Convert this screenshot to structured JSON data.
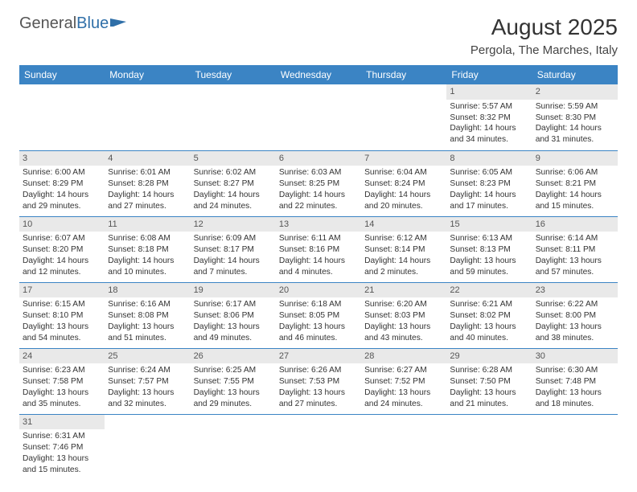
{
  "logo": {
    "text1": "General",
    "text2": "Blue"
  },
  "title": "August 2025",
  "location": "Pergola, The Marches, Italy",
  "colors": {
    "header_bg": "#3b84c4",
    "header_text": "#ffffff",
    "day_bg": "#e9e9e9",
    "border": "#3b84c4",
    "body_text": "#333333"
  },
  "weekdays": [
    "Sunday",
    "Monday",
    "Tuesday",
    "Wednesday",
    "Thursday",
    "Friday",
    "Saturday"
  ],
  "weeks": [
    [
      {
        "day": "",
        "sunrise": "",
        "sunset": "",
        "daylight": ""
      },
      {
        "day": "",
        "sunrise": "",
        "sunset": "",
        "daylight": ""
      },
      {
        "day": "",
        "sunrise": "",
        "sunset": "",
        "daylight": ""
      },
      {
        "day": "",
        "sunrise": "",
        "sunset": "",
        "daylight": ""
      },
      {
        "day": "",
        "sunrise": "",
        "sunset": "",
        "daylight": ""
      },
      {
        "day": "1",
        "sunrise": "Sunrise: 5:57 AM",
        "sunset": "Sunset: 8:32 PM",
        "daylight": "Daylight: 14 hours and 34 minutes."
      },
      {
        "day": "2",
        "sunrise": "Sunrise: 5:59 AM",
        "sunset": "Sunset: 8:30 PM",
        "daylight": "Daylight: 14 hours and 31 minutes."
      }
    ],
    [
      {
        "day": "3",
        "sunrise": "Sunrise: 6:00 AM",
        "sunset": "Sunset: 8:29 PM",
        "daylight": "Daylight: 14 hours and 29 minutes."
      },
      {
        "day": "4",
        "sunrise": "Sunrise: 6:01 AM",
        "sunset": "Sunset: 8:28 PM",
        "daylight": "Daylight: 14 hours and 27 minutes."
      },
      {
        "day": "5",
        "sunrise": "Sunrise: 6:02 AM",
        "sunset": "Sunset: 8:27 PM",
        "daylight": "Daylight: 14 hours and 24 minutes."
      },
      {
        "day": "6",
        "sunrise": "Sunrise: 6:03 AM",
        "sunset": "Sunset: 8:25 PM",
        "daylight": "Daylight: 14 hours and 22 minutes."
      },
      {
        "day": "7",
        "sunrise": "Sunrise: 6:04 AM",
        "sunset": "Sunset: 8:24 PM",
        "daylight": "Daylight: 14 hours and 20 minutes."
      },
      {
        "day": "8",
        "sunrise": "Sunrise: 6:05 AM",
        "sunset": "Sunset: 8:23 PM",
        "daylight": "Daylight: 14 hours and 17 minutes."
      },
      {
        "day": "9",
        "sunrise": "Sunrise: 6:06 AM",
        "sunset": "Sunset: 8:21 PM",
        "daylight": "Daylight: 14 hours and 15 minutes."
      }
    ],
    [
      {
        "day": "10",
        "sunrise": "Sunrise: 6:07 AM",
        "sunset": "Sunset: 8:20 PM",
        "daylight": "Daylight: 14 hours and 12 minutes."
      },
      {
        "day": "11",
        "sunrise": "Sunrise: 6:08 AM",
        "sunset": "Sunset: 8:18 PM",
        "daylight": "Daylight: 14 hours and 10 minutes."
      },
      {
        "day": "12",
        "sunrise": "Sunrise: 6:09 AM",
        "sunset": "Sunset: 8:17 PM",
        "daylight": "Daylight: 14 hours and 7 minutes."
      },
      {
        "day": "13",
        "sunrise": "Sunrise: 6:11 AM",
        "sunset": "Sunset: 8:16 PM",
        "daylight": "Daylight: 14 hours and 4 minutes."
      },
      {
        "day": "14",
        "sunrise": "Sunrise: 6:12 AM",
        "sunset": "Sunset: 8:14 PM",
        "daylight": "Daylight: 14 hours and 2 minutes."
      },
      {
        "day": "15",
        "sunrise": "Sunrise: 6:13 AM",
        "sunset": "Sunset: 8:13 PM",
        "daylight": "Daylight: 13 hours and 59 minutes."
      },
      {
        "day": "16",
        "sunrise": "Sunrise: 6:14 AM",
        "sunset": "Sunset: 8:11 PM",
        "daylight": "Daylight: 13 hours and 57 minutes."
      }
    ],
    [
      {
        "day": "17",
        "sunrise": "Sunrise: 6:15 AM",
        "sunset": "Sunset: 8:10 PM",
        "daylight": "Daylight: 13 hours and 54 minutes."
      },
      {
        "day": "18",
        "sunrise": "Sunrise: 6:16 AM",
        "sunset": "Sunset: 8:08 PM",
        "daylight": "Daylight: 13 hours and 51 minutes."
      },
      {
        "day": "19",
        "sunrise": "Sunrise: 6:17 AM",
        "sunset": "Sunset: 8:06 PM",
        "daylight": "Daylight: 13 hours and 49 minutes."
      },
      {
        "day": "20",
        "sunrise": "Sunrise: 6:18 AM",
        "sunset": "Sunset: 8:05 PM",
        "daylight": "Daylight: 13 hours and 46 minutes."
      },
      {
        "day": "21",
        "sunrise": "Sunrise: 6:20 AM",
        "sunset": "Sunset: 8:03 PM",
        "daylight": "Daylight: 13 hours and 43 minutes."
      },
      {
        "day": "22",
        "sunrise": "Sunrise: 6:21 AM",
        "sunset": "Sunset: 8:02 PM",
        "daylight": "Daylight: 13 hours and 40 minutes."
      },
      {
        "day": "23",
        "sunrise": "Sunrise: 6:22 AM",
        "sunset": "Sunset: 8:00 PM",
        "daylight": "Daylight: 13 hours and 38 minutes."
      }
    ],
    [
      {
        "day": "24",
        "sunrise": "Sunrise: 6:23 AM",
        "sunset": "Sunset: 7:58 PM",
        "daylight": "Daylight: 13 hours and 35 minutes."
      },
      {
        "day": "25",
        "sunrise": "Sunrise: 6:24 AM",
        "sunset": "Sunset: 7:57 PM",
        "daylight": "Daylight: 13 hours and 32 minutes."
      },
      {
        "day": "26",
        "sunrise": "Sunrise: 6:25 AM",
        "sunset": "Sunset: 7:55 PM",
        "daylight": "Daylight: 13 hours and 29 minutes."
      },
      {
        "day": "27",
        "sunrise": "Sunrise: 6:26 AM",
        "sunset": "Sunset: 7:53 PM",
        "daylight": "Daylight: 13 hours and 27 minutes."
      },
      {
        "day": "28",
        "sunrise": "Sunrise: 6:27 AM",
        "sunset": "Sunset: 7:52 PM",
        "daylight": "Daylight: 13 hours and 24 minutes."
      },
      {
        "day": "29",
        "sunrise": "Sunrise: 6:28 AM",
        "sunset": "Sunset: 7:50 PM",
        "daylight": "Daylight: 13 hours and 21 minutes."
      },
      {
        "day": "30",
        "sunrise": "Sunrise: 6:30 AM",
        "sunset": "Sunset: 7:48 PM",
        "daylight": "Daylight: 13 hours and 18 minutes."
      }
    ],
    [
      {
        "day": "31",
        "sunrise": "Sunrise: 6:31 AM",
        "sunset": "Sunset: 7:46 PM",
        "daylight": "Daylight: 13 hours and 15 minutes."
      },
      {
        "day": "",
        "sunrise": "",
        "sunset": "",
        "daylight": ""
      },
      {
        "day": "",
        "sunrise": "",
        "sunset": "",
        "daylight": ""
      },
      {
        "day": "",
        "sunrise": "",
        "sunset": "",
        "daylight": ""
      },
      {
        "day": "",
        "sunrise": "",
        "sunset": "",
        "daylight": ""
      },
      {
        "day": "",
        "sunrise": "",
        "sunset": "",
        "daylight": ""
      },
      {
        "day": "",
        "sunrise": "",
        "sunset": "",
        "daylight": ""
      }
    ]
  ]
}
